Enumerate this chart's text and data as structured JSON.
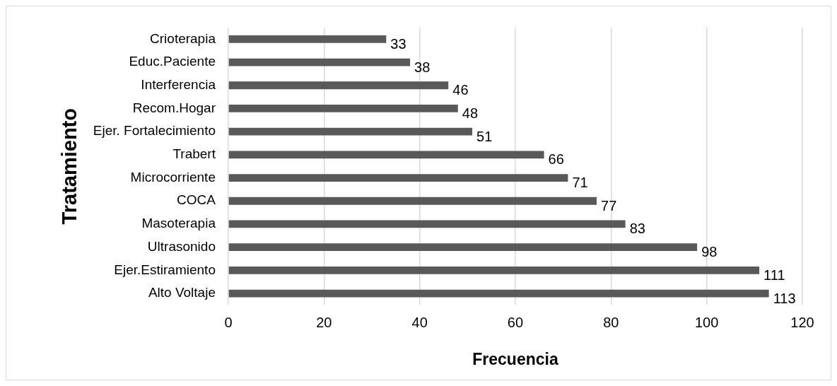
{
  "chart_data": {
    "type": "bar",
    "orientation": "horizontal",
    "xlabel": "Frecuencia",
    "ylabel": "Tratamiento",
    "categories": [
      "Crioterapia",
      "Educ.Paciente",
      "Interferencia",
      "Recom.Hogar",
      "Ejer. Fortalecimiento",
      "Trabert",
      "Microcorriente",
      "COCA",
      "Masoterapia",
      "Ultrasonido",
      "Ejer.Estiramiento",
      "Alto Voltaje"
    ],
    "values": [
      33,
      38,
      46,
      48,
      51,
      66,
      71,
      77,
      83,
      98,
      111,
      113
    ],
    "color": "#595959",
    "xlim": [
      0,
      120
    ],
    "xticks": [
      0,
      20,
      40,
      60,
      80,
      100,
      120
    ],
    "grid": "x",
    "data_labels": true,
    "legend": false
  }
}
